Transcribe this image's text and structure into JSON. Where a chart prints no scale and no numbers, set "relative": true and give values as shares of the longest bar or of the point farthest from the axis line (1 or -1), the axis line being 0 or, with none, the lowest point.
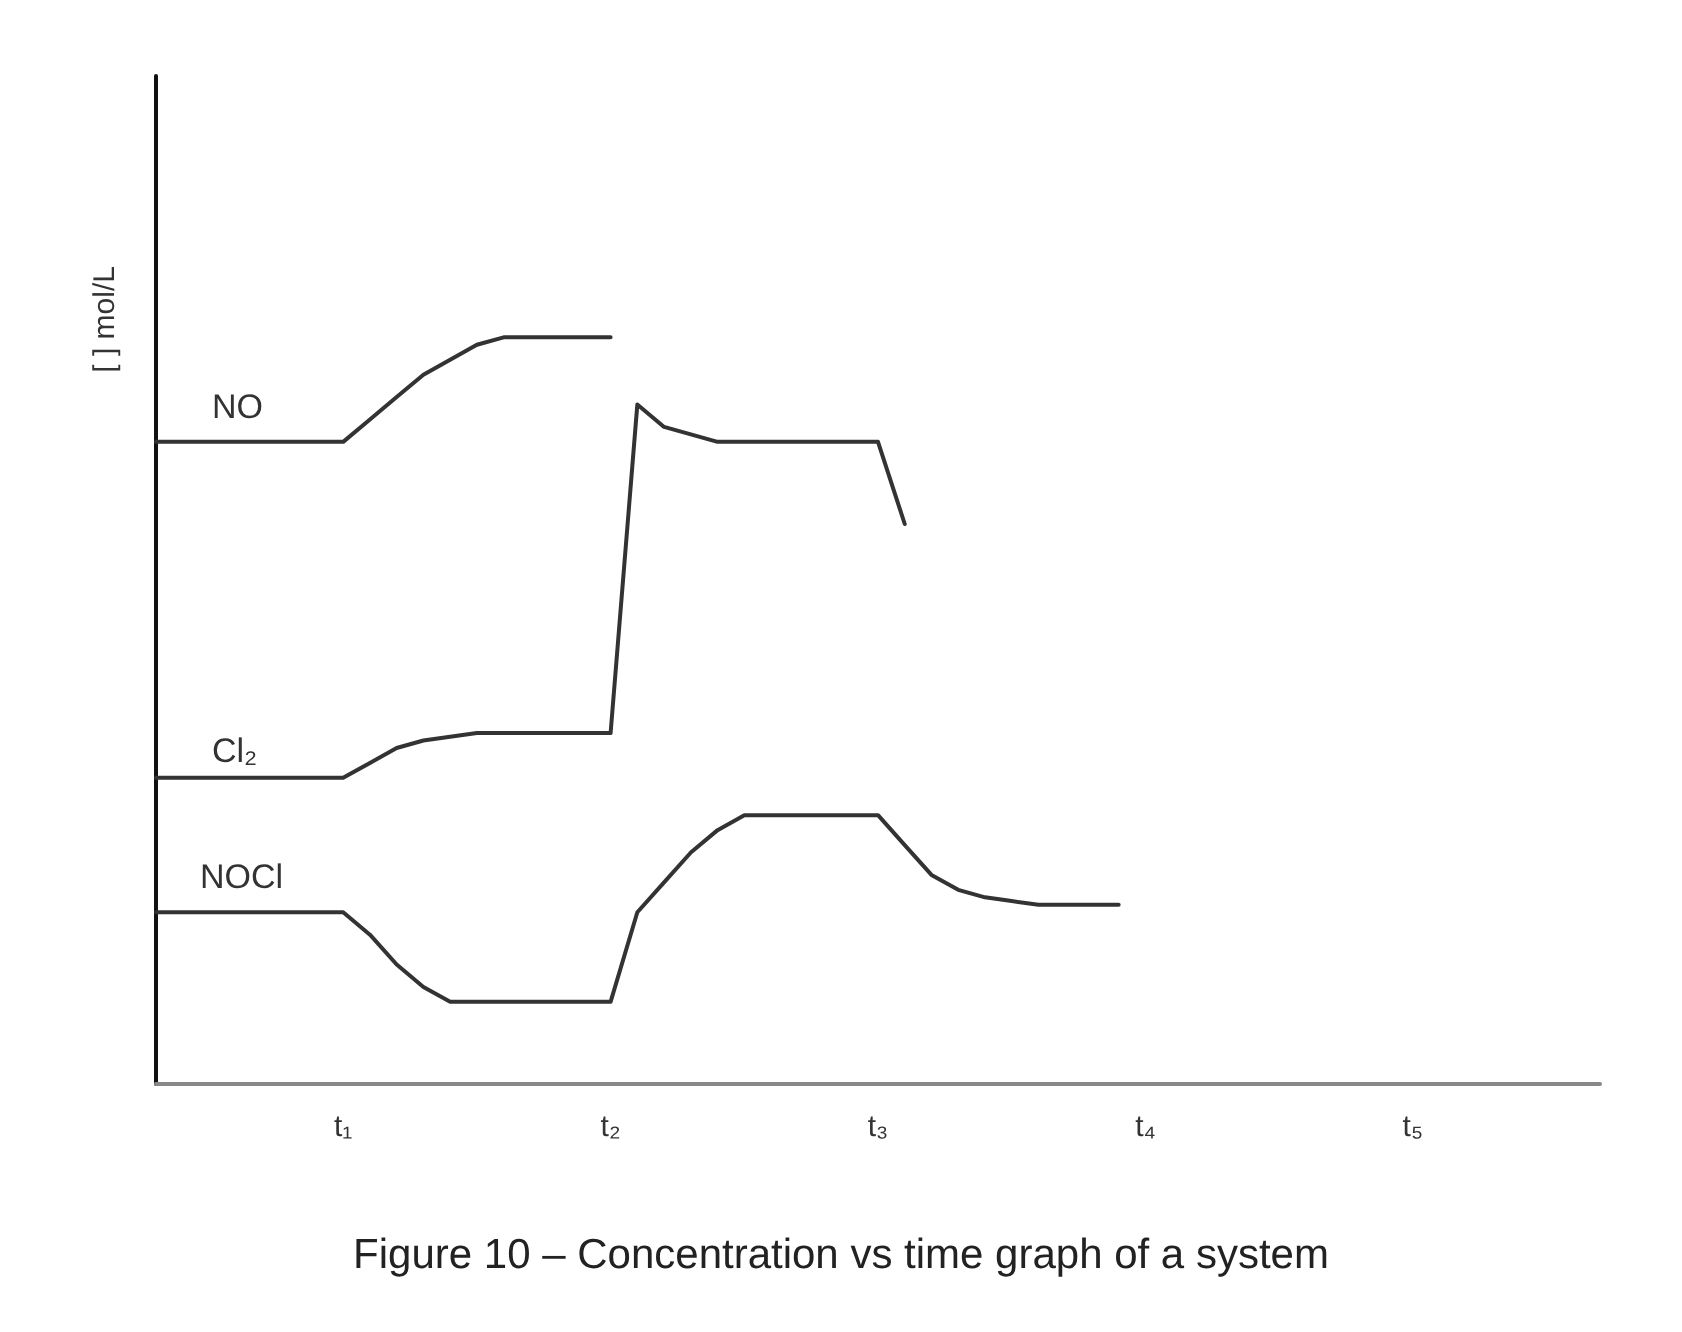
{
  "chart_data": {
    "type": "line",
    "relative": true,
    "ylabel": "[ ] mol/L",
    "annotations": [
      "Figure 10 – Concentration vs time graph of a system"
    ],
    "categories": [
      null,
      null,
      null,
      null,
      null,
      null,
      null,
      "t₁",
      null,
      null,
      null,
      null,
      null,
      null,
      null,
      null,
      null,
      "t₂",
      null,
      null,
      null,
      null,
      null,
      null,
      null,
      null,
      null,
      "t₃",
      null,
      null,
      null,
      null,
      null,
      null,
      null,
      null,
      null,
      "t₄",
      null,
      null,
      null,
      null,
      null,
      null,
      null,
      null,
      null,
      "t₅",
      null,
      null,
      null,
      null,
      null,
      null,
      null
    ],
    "series": [
      {
        "name": "NO",
        "color": "#333333",
        "values": [
          0.86,
          0.86,
          0.86,
          0.86,
          0.86,
          0.86,
          0.86,
          0.86,
          0.89,
          0.92,
          0.95,
          0.97,
          0.99,
          1,
          1,
          1,
          1,
          1,
          null,
          null,
          null,
          null,
          null,
          null,
          null,
          null,
          null,
          null,
          null,
          null,
          null,
          null,
          null,
          null,
          null,
          null,
          null,
          null,
          null,
          null,
          null,
          null,
          null,
          null,
          null,
          null,
          null,
          null,
          null,
          null,
          null,
          null,
          null,
          null,
          null
        ]
      },
      {
        "name": "Cl₂",
        "color": "#333333",
        "values": [
          0.41,
          0.41,
          0.41,
          0.41,
          0.41,
          0.41,
          0.41,
          0.41,
          0.43,
          0.45,
          0.46,
          0.465,
          0.47,
          0.47,
          0.47,
          0.47,
          0.47,
          0.47,
          0.91,
          0.88,
          0.87,
          0.86,
          0.86,
          0.86,
          0.86,
          0.86,
          0.86,
          0.86,
          0.75,
          null,
          null,
          null,
          null,
          null,
          null,
          null,
          null,
          null,
          null,
          null,
          null,
          null,
          null,
          null,
          null,
          null,
          null,
          null,
          null,
          null,
          null,
          null,
          null,
          null,
          null
        ]
      },
      {
        "name": "NOCl",
        "color": "#333333",
        "values": [
          0.23,
          0.23,
          0.23,
          0.23,
          0.23,
          0.23,
          0.23,
          0.23,
          0.2,
          0.16,
          0.13,
          0.11,
          0.11,
          0.11,
          0.11,
          0.11,
          0.11,
          0.11,
          0.23,
          0.27,
          0.31,
          0.34,
          0.36,
          0.36,
          0.36,
          0.36,
          0.36,
          0.36,
          0.32,
          0.28,
          0.26,
          0.25,
          0.245,
          0.24,
          0.24,
          0.24,
          0.24,
          null,
          null,
          null,
          null,
          null,
          null,
          null,
          null,
          null,
          null,
          null,
          null,
          null,
          null,
          null,
          null,
          null,
          null
        ]
      }
    ],
    "marker": "none",
    "line_style": "solid",
    "grid": false,
    "legend": false
  }
}
